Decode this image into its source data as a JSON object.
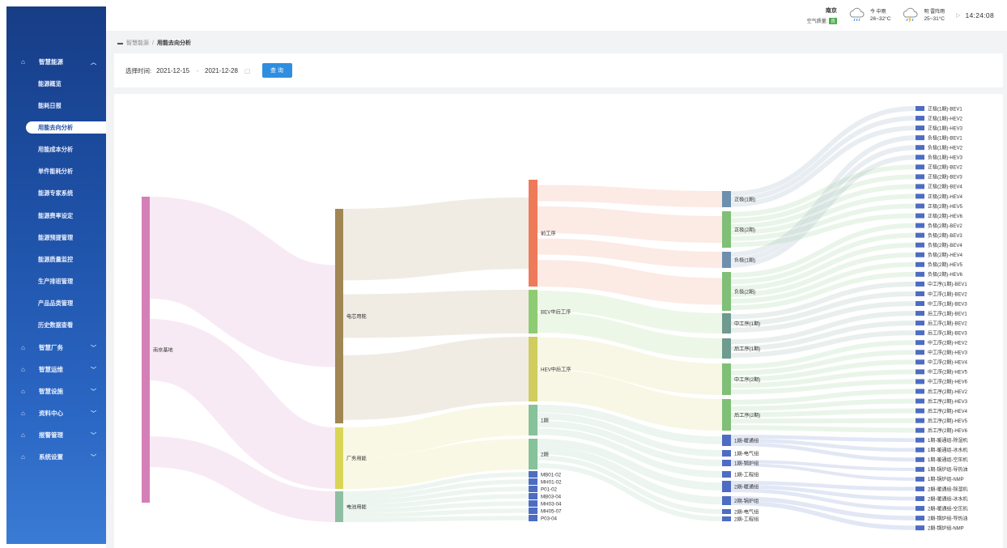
{
  "sidebar": {
    "menu_open": {
      "label": "智慧能源",
      "icon": "home-icon"
    },
    "submenu": [
      "能源概览",
      "能耗日报",
      "用能去向分析",
      "用能成本分析",
      "单件能耗分析",
      "能源专家系统",
      "能源费率设定",
      "能源预提管理",
      "能源质量监控",
      "生产排班管理",
      "产品品类管理",
      "历史数据查看"
    ],
    "active_index": 2,
    "groups": [
      "智慧厂务",
      "智慧运维",
      "智慧设施",
      "资料中心",
      "报警管理",
      "系统设置"
    ]
  },
  "topbar": {
    "city": "南京",
    "air_quality_label": "空气质量:",
    "air_quality_value": "良",
    "today_label": "今 中雨",
    "today_temp": "26~32°C",
    "tomorrow_label": "明 雷阵雨",
    "tomorrow_temp": "25~31°C",
    "time": "14:24:08"
  },
  "breadcrumb": {
    "root": "智慧能源",
    "separator": "/",
    "current": "用能去向分析"
  },
  "filter": {
    "label": "选择时间:",
    "start_date": "2021-12-15",
    "range_sep": "→",
    "end_date": "2021-12-28",
    "query_button": "查 询"
  },
  "chart_data": {
    "type": "sankey",
    "columns": [
      [
        {
          "name": "南京基地",
          "value": 1.0,
          "color": "#d47fb8"
        }
      ],
      [
        {
          "name": "电芯用能",
          "value": 0.74,
          "color": "#a08653"
        },
        {
          "name": "厂务用能",
          "value": 0.2,
          "color": "#d9d656"
        },
        {
          "name": "电池用能",
          "value": 0.1,
          "color": "#8fbfa2"
        }
      ],
      [
        {
          "name": "前工序",
          "value": 0.35,
          "color": "#ee7a5a"
        },
        {
          "name": "BEV中后工序",
          "value": 0.14,
          "color": "#8dcc72"
        },
        {
          "name": "HEV中后工序",
          "value": 0.21,
          "color": "#d1cc5e"
        },
        {
          "name": "1期",
          "value": 0.1,
          "color": "#86c29a"
        },
        {
          "name": "2期",
          "value": 0.1,
          "color": "#86c29a"
        },
        {
          "name": "MB01-02",
          "value": 0.012,
          "color": "#4d6cc2"
        },
        {
          "name": "MH01-02",
          "value": 0.012,
          "color": "#4d6cc2"
        },
        {
          "name": "P01-02",
          "value": 0.012,
          "color": "#4d6cc2"
        },
        {
          "name": "MB03-04",
          "value": 0.012,
          "color": "#4d6cc2"
        },
        {
          "name": "MH03-04",
          "value": 0.012,
          "color": "#4d6cc2"
        },
        {
          "name": "MH05-07",
          "value": 0.012,
          "color": "#4d6cc2"
        },
        {
          "name": "P03-04",
          "value": 0.012,
          "color": "#4d6cc2"
        }
      ],
      [
        {
          "name": "正极(1期)",
          "value": 0.05,
          "color": "#6f8fae"
        },
        {
          "name": "正极(2期)",
          "value": 0.12,
          "color": "#7fbf77"
        },
        {
          "name": "负极(1期)",
          "value": 0.05,
          "color": "#6f8fae"
        },
        {
          "name": "负极(2期)",
          "value": 0.12,
          "color": "#7fbf77"
        },
        {
          "name": "中工序(1期)",
          "value": 0.07,
          "color": "#6f9a8f"
        },
        {
          "name": "后工序(1期)",
          "value": 0.07,
          "color": "#6f9a8f"
        },
        {
          "name": "中工序(2期)",
          "value": 0.1,
          "color": "#7fbf77"
        },
        {
          "name": "后工序(2期)",
          "value": 0.1,
          "color": "#7fbf77"
        },
        {
          "name": "1期-暖通组",
          "value": 0.03,
          "color": "#4d6cc2"
        },
        {
          "name": "1期-电气组",
          "value": 0.015,
          "color": "#4d6cc2"
        },
        {
          "name": "1期-锅炉组",
          "value": 0.015,
          "color": "#4d6cc2"
        },
        {
          "name": "1期-工程组",
          "value": 0.015,
          "color": "#4d6cc2"
        },
        {
          "name": "2期-暖通组",
          "value": 0.03,
          "color": "#4d6cc2"
        },
        {
          "name": "2期-锅炉组",
          "value": 0.025,
          "color": "#4d6cc2"
        },
        {
          "name": "2期-电气组",
          "value": 0.012,
          "color": "#4d6cc2"
        },
        {
          "name": "2期-工程组",
          "value": 0.012,
          "color": "#4d6cc2"
        }
      ],
      [
        "正极(1期)-BEV1",
        "正极(1期)-HEV2",
        "正极(1期)-HEV3",
        "负极(1期)-BEV1",
        "负极(1期)-HEV2",
        "负极(1期)-HEV3",
        "正极(2期)-BEV2",
        "正极(2期)-BEV3",
        "正极(2期)-BEV4",
        "正极(2期)-HEV4",
        "正极(2期)-HEV5",
        "正极(2期)-HEV6",
        "负极(2期)-BEV2",
        "负极(2期)-BEV3",
        "负极(2期)-BEV4",
        "负极(2期)-HEV4",
        "负极(2期)-HEV5",
        "负极(2期)-HEV6",
        "中工序(1期)-BEV1",
        "中工序(1期)-BEV2",
        "中工序(1期)-BEV3",
        "后工序(1期)-BEV1",
        "后工序(1期)-BEV2",
        "后工序(1期)-BEV3",
        "中工序(2期)-HEV2",
        "中工序(2期)-HEV3",
        "中工序(2期)-HEV4",
        "中工序(2期)-HEV5",
        "中工序(2期)-HEV6",
        "后工序(2期)-HEV2",
        "后工序(2期)-HEV3",
        "后工序(2期)-HEV4",
        "后工序(2期)-HEV5",
        "后工序(2期)-HEV6",
        "1期-暖通组-除湿机",
        "1期-暖通组-冰水机",
        "1期-暖通组-空压机",
        "1期-锅炉组-导热油",
        "1期-锅炉组-NMP",
        "2期-暖通组-除湿机",
        "2期-暖通组-冰水机",
        "2期-暖通组-空压机",
        "2期-锅炉组-导热油",
        "2期-锅炉组-NMP"
      ]
    ],
    "leaf_color": "#4d6cc2",
    "links": [
      [
        "南京基地",
        "电芯用能"
      ],
      [
        "南京基地",
        "厂务用能"
      ],
      [
        "南京基地",
        "电池用能"
      ],
      [
        "电芯用能",
        "前工序"
      ],
      [
        "电芯用能",
        "BEV中后工序"
      ],
      [
        "电芯用能",
        "HEV中后工序"
      ],
      [
        "厂务用能",
        "1期"
      ],
      [
        "厂务用能",
        "2期"
      ],
      [
        "电池用能",
        "MB01-02"
      ],
      [
        "电池用能",
        "MH01-02"
      ],
      [
        "电池用能",
        "P01-02"
      ],
      [
        "电池用能",
        "MB03-04"
      ],
      [
        "电池用能",
        "MH03-04"
      ],
      [
        "电池用能",
        "MH05-07"
      ],
      [
        "电池用能",
        "P03-04"
      ],
      [
        "前工序",
        "正极(1期)"
      ],
      [
        "前工序",
        "正极(2期)"
      ],
      [
        "前工序",
        "负极(1期)"
      ],
      [
        "前工序",
        "负极(2期)"
      ],
      [
        "BEV中后工序",
        "中工序(1期)"
      ],
      [
        "BEV中后工序",
        "后工序(1期)"
      ],
      [
        "HEV中后工序",
        "中工序(2期)"
      ],
      [
        "HEV中后工序",
        "后工序(2期)"
      ],
      [
        "1期",
        "1期-暖通组"
      ],
      [
        "1期",
        "1期-电气组"
      ],
      [
        "1期",
        "1期-锅炉组"
      ],
      [
        "1期",
        "1期-工程组"
      ],
      [
        "2期",
        "2期-暖通组"
      ],
      [
        "2期",
        "2期-锅炉组"
      ],
      [
        "2期",
        "2期-电气组"
      ],
      [
        "2期",
        "2期-工程组"
      ],
      [
        "正极(1期)",
        "正极(1期)-BEV1"
      ],
      [
        "正极(1期)",
        "正极(1期)-HEV2"
      ],
      [
        "正极(1期)",
        "正极(1期)-HEV3"
      ],
      [
        "负极(1期)",
        "负极(1期)-BEV1"
      ],
      [
        "负极(1期)",
        "负极(1期)-HEV2"
      ],
      [
        "负极(1期)",
        "负极(1期)-HEV3"
      ],
      [
        "正极(2期)",
        "正极(2期)-BEV2"
      ],
      [
        "正极(2期)",
        "正极(2期)-BEV3"
      ],
      [
        "正极(2期)",
        "正极(2期)-BEV4"
      ],
      [
        "正极(2期)",
        "正极(2期)-HEV4"
      ],
      [
        "正极(2期)",
        "正极(2期)-HEV5"
      ],
      [
        "正极(2期)",
        "正极(2期)-HEV6"
      ],
      [
        "负极(2期)",
        "负极(2期)-BEV2"
      ],
      [
        "负极(2期)",
        "负极(2期)-BEV3"
      ],
      [
        "负极(2期)",
        "负极(2期)-BEV4"
      ],
      [
        "负极(2期)",
        "负极(2期)-HEV4"
      ],
      [
        "负极(2期)",
        "负极(2期)-HEV5"
      ],
      [
        "负极(2期)",
        "负极(2期)-HEV6"
      ],
      [
        "中工序(1期)",
        "中工序(1期)-BEV1"
      ],
      [
        "中工序(1期)",
        "中工序(1期)-BEV2"
      ],
      [
        "中工序(1期)",
        "中工序(1期)-BEV3"
      ],
      [
        "后工序(1期)",
        "后工序(1期)-BEV1"
      ],
      [
        "后工序(1期)",
        "后工序(1期)-BEV2"
      ],
      [
        "后工序(1期)",
        "后工序(1期)-BEV3"
      ],
      [
        "中工序(2期)",
        "中工序(2期)-HEV2"
      ],
      [
        "中工序(2期)",
        "中工序(2期)-HEV3"
      ],
      [
        "中工序(2期)",
        "中工序(2期)-HEV4"
      ],
      [
        "中工序(2期)",
        "中工序(2期)-HEV5"
      ],
      [
        "中工序(2期)",
        "中工序(2期)-HEV6"
      ],
      [
        "后工序(2期)",
        "后工序(2期)-HEV2"
      ],
      [
        "后工序(2期)",
        "后工序(2期)-HEV3"
      ],
      [
        "后工序(2期)",
        "后工序(2期)-HEV4"
      ],
      [
        "后工序(2期)",
        "后工序(2期)-HEV5"
      ],
      [
        "后工序(2期)",
        "后工序(2期)-HEV6"
      ],
      [
        "1期-暖通组",
        "1期-暖通组-除湿机"
      ],
      [
        "1期-暖通组",
        "1期-暖通组-冰水机"
      ],
      [
        "1期-暖通组",
        "1期-暖通组-空压机"
      ],
      [
        "1期-锅炉组",
        "1期-锅炉组-导热油"
      ],
      [
        "1期-锅炉组",
        "1期-锅炉组-NMP"
      ],
      [
        "2期-暖通组",
        "2期-暖通组-除湿机"
      ],
      [
        "2期-暖通组",
        "2期-暖通组-冰水机"
      ],
      [
        "2期-暖通组",
        "2期-暖通组-空压机"
      ],
      [
        "2期-锅炉组",
        "2期-锅炉组-导热油"
      ],
      [
        "2期-锅炉组",
        "2期-锅炉组-NMP"
      ]
    ]
  }
}
